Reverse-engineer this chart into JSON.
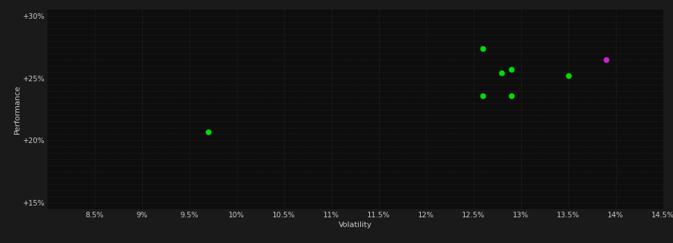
{
  "background_color": "#1a1a1a",
  "plot_bg_color": "#0d0d0d",
  "grid_color": "#2a2a2a",
  "text_color": "#cccccc",
  "xlabel": "Volatility",
  "ylabel": "Performance",
  "xlim": [
    0.08,
    0.145
  ],
  "ylim": [
    0.145,
    0.305
  ],
  "xticks": [
    0.085,
    0.09,
    0.095,
    0.1,
    0.105,
    0.11,
    0.115,
    0.12,
    0.125,
    0.13,
    0.135,
    0.14,
    0.145
  ],
  "xtick_labels": [
    "8.5%",
    "9%",
    "9.5%",
    "10%",
    "10.5%",
    "11%",
    "11.5%",
    "12%",
    "12.5%",
    "13%",
    "13.5%",
    "14%",
    "14.5%"
  ],
  "yticks": [
    0.15,
    0.155,
    0.16,
    0.165,
    0.17,
    0.175,
    0.18,
    0.185,
    0.19,
    0.195,
    0.2,
    0.205,
    0.21,
    0.215,
    0.22,
    0.225,
    0.23,
    0.235,
    0.24,
    0.245,
    0.25,
    0.255,
    0.26,
    0.265,
    0.27,
    0.275,
    0.28,
    0.285,
    0.29,
    0.295,
    0.3
  ],
  "ytick_labels_show": [
    0.15,
    0.2,
    0.25,
    0.3
  ],
  "points_green": [
    [
      0.097,
      0.207
    ],
    [
      0.126,
      0.274
    ],
    [
      0.128,
      0.254
    ],
    [
      0.129,
      0.257
    ],
    [
      0.126,
      0.236
    ],
    [
      0.129,
      0.236
    ],
    [
      0.135,
      0.252
    ]
  ],
  "points_magenta": [
    [
      0.139,
      0.265
    ]
  ],
  "dot_size": 25,
  "green_color": "#00dd00",
  "magenta_color": "#cc22cc",
  "font_size_ticks": 7.5,
  "font_size_labels": 8,
  "font_size_ylabel": 8
}
